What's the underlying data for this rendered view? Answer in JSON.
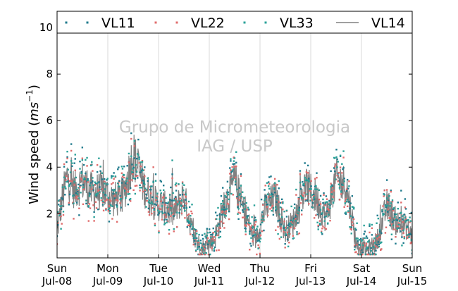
{
  "chart_data": {
    "type": "scatter",
    "title": "",
    "ylabel_main": "Wind speed (",
    "ylabel_unit": "ms",
    "ylabel_exp": "−1",
    "ylabel_close": ")",
    "ylim": [
      0.1,
      10.7
    ],
    "yticks": [
      2,
      4,
      6,
      8,
      10
    ],
    "xlim": [
      0,
      7
    ],
    "xticks": [
      {
        "day": "Sun",
        "date": "Jul-08"
      },
      {
        "day": "Mon",
        "date": "Jul-09"
      },
      {
        "day": "Tue",
        "date": "Jul-10"
      },
      {
        "day": "Wed",
        "date": "Jul-11"
      },
      {
        "day": "Thu",
        "date": "Jul-12"
      },
      {
        "day": "Fri",
        "date": "Jul-13"
      },
      {
        "day": "Sat",
        "date": "Jul-14"
      },
      {
        "day": "Sun",
        "date": "Jul-15"
      }
    ],
    "grid": "vertical",
    "legend_position": "top",
    "watermark": [
      "Grupo de Micrometeorologia",
      "IAG / USP"
    ],
    "series": [
      {
        "name": "VL11",
        "style": "points",
        "color": "#1f7a8c"
      },
      {
        "name": "VL22",
        "style": "points",
        "color": "#e06c6c"
      },
      {
        "name": "VL33",
        "style": "points",
        "color": "#2aa198"
      },
      {
        "name": "VL14",
        "style": "line",
        "color": "#808080"
      }
    ],
    "profile_days": [
      0,
      0.1,
      0.2,
      0.35,
      0.5,
      0.7,
      0.9,
      1.1,
      1.3,
      1.5,
      1.7,
      1.9,
      2.1,
      2.3,
      2.5,
      2.7,
      2.9,
      3.1,
      3.3,
      3.5,
      3.7,
      3.9,
      4.1,
      4.3,
      4.5,
      4.7,
      4.9,
      5.1,
      5.3,
      5.5,
      5.7,
      5.9,
      6.1,
      6.3,
      6.5,
      6.7,
      6.9,
      7.0
    ],
    "profile_values": [
      1.2,
      2.6,
      3.6,
      3.0,
      3.4,
      2.9,
      3.0,
      2.6,
      2.7,
      4.6,
      3.2,
      2.5,
      2.3,
      2.0,
      2.8,
      0.9,
      0.5,
      0.9,
      2.4,
      3.4,
      2.0,
      0.8,
      2.2,
      2.7,
      1.2,
      1.8,
      3.2,
      2.7,
      1.8,
      3.5,
      3.2,
      0.7,
      0.4,
      0.8,
      2.3,
      1.6,
      1.4,
      1.0
    ]
  }
}
